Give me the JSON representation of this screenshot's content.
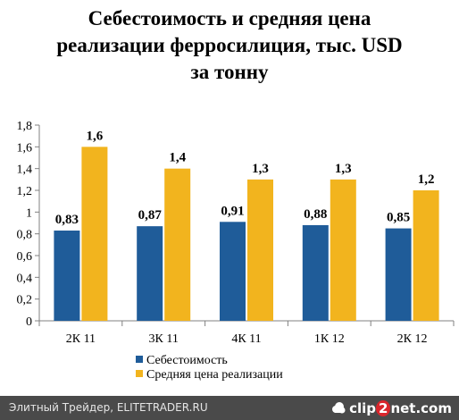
{
  "title_lines": [
    "Себестоимость и средняя цена",
    "реализации ферросилиция, тыс. USD",
    "за тонну"
  ],
  "chart_data": {
    "type": "bar",
    "title": "Себестоимость и средняя цена реализации ферросилиция, тыс. USD за тонну",
    "categories": [
      "2К 11",
      "3К 11",
      "4К 11",
      "1К 12",
      "2К 12"
    ],
    "series": [
      {
        "name": "Себестоимость",
        "values": [
          0.83,
          0.87,
          0.91,
          0.88,
          0.85
        ],
        "labels": [
          "0,83",
          "0,87",
          "0,91",
          "0,88",
          "0,85"
        ],
        "color": "#1f5c99"
      },
      {
        "name": "Средняя цена реализации",
        "values": [
          1.6,
          1.4,
          1.3,
          1.3,
          1.2
        ],
        "labels": [
          "1,6",
          "1,4",
          "1,3",
          "1,3",
          "1,2"
        ],
        "color": "#f2b41e"
      }
    ],
    "yticks": [
      {
        "value": 0,
        "label": "0"
      },
      {
        "value": 0.2,
        "label": "0,2"
      },
      {
        "value": 0.4,
        "label": "0,4"
      },
      {
        "value": 0.6,
        "label": "0,6"
      },
      {
        "value": 0.8,
        "label": "0,8"
      },
      {
        "value": 1.0,
        "label": "1"
      },
      {
        "value": 1.2,
        "label": "1,2"
      },
      {
        "value": 1.4,
        "label": "1,4"
      },
      {
        "value": 1.6,
        "label": "1,6"
      },
      {
        "value": 1.8,
        "label": "1,8"
      }
    ],
    "ylim": [
      0,
      1.8
    ],
    "xlabel": "",
    "ylabel": "",
    "grid": false,
    "legend": "bottom"
  },
  "footer": {
    "text": "Элитный Трейдер, ELITETRADER.RU",
    "logo_pre": "clip",
    "logo_accent": "2",
    "logo_post": "net",
    "logo_suffix": ".com"
  },
  "colors": {
    "footer_bg": "#4a4a4a",
    "logo_accent": "#d9262c"
  }
}
